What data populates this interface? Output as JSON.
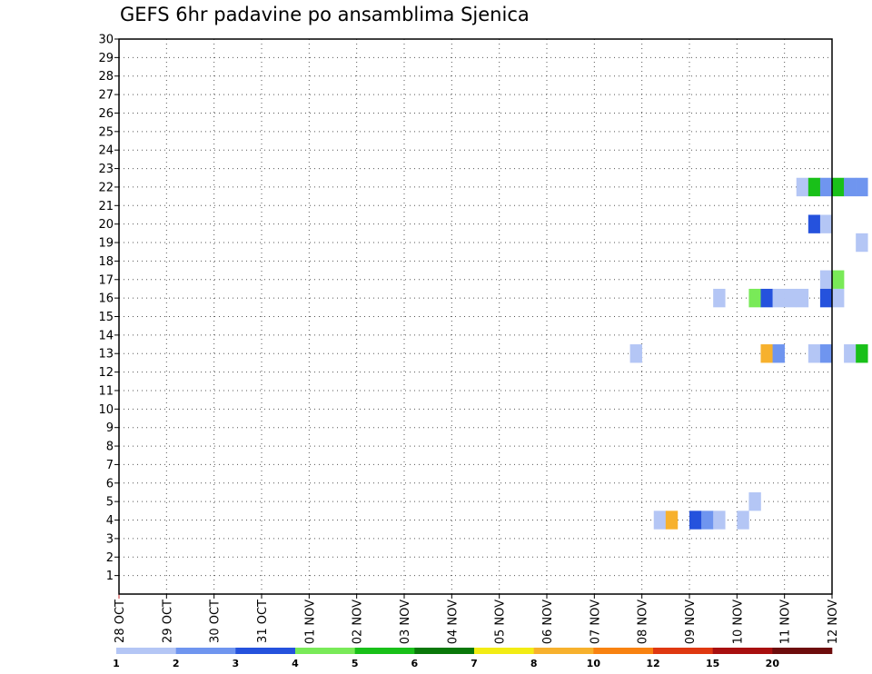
{
  "chart_data": {
    "type": "heatmap",
    "title": "GEFS 6hr padavine po ansamblima Sjenica",
    "xlabel": "",
    "ylabel": "",
    "x_ticks": [
      "28 OCT",
      "29 OCT",
      "30 OCT",
      "31 OCT",
      "01 NOV",
      "02 NOV",
      "03 NOV",
      "04 NOV",
      "05 NOV",
      "06 NOV",
      "07 NOV",
      "08 NOV",
      "09 NOV",
      "10 NOV",
      "11 NOV",
      "12 NOV"
    ],
    "x_range_days": [
      0,
      15
    ],
    "steps_per_day": 4,
    "y_ticks": [
      1,
      2,
      3,
      4,
      5,
      6,
      7,
      8,
      9,
      10,
      11,
      12,
      13,
      14,
      15,
      16,
      17,
      18,
      19,
      20,
      21,
      22,
      23,
      24,
      25,
      26,
      27,
      28,
      29,
      30
    ],
    "y_range": [
      0,
      30
    ],
    "grid": true,
    "colorbar": {
      "labels": [
        "1",
        "2",
        "3",
        "4",
        "5",
        "6",
        "7",
        "8",
        "10",
        "12",
        "15",
        "20"
      ],
      "colors": [
        "#b4c6f5",
        "#6f95ef",
        "#2552dd",
        "#79ea58",
        "#19c019",
        "#0a780a",
        "#f2ec14",
        "#f7b12d",
        "#f88211",
        "#df3811",
        "#a80f0f",
        "#6d0c0c"
      ]
    },
    "cells": [
      {
        "step": 43,
        "member": 13,
        "bin": 0
      },
      {
        "step": 45,
        "member": 4,
        "bin": 0
      },
      {
        "step": 46,
        "member": 4,
        "bin": 7
      },
      {
        "step": 48,
        "member": 4,
        "bin": 2
      },
      {
        "step": 49,
        "member": 4,
        "bin": 1
      },
      {
        "step": 50,
        "member": 4,
        "bin": 0
      },
      {
        "step": 50,
        "member": 16,
        "bin": 0
      },
      {
        "step": 52,
        "member": 4,
        "bin": 0
      },
      {
        "step": 53,
        "member": 5,
        "bin": 0
      },
      {
        "step": 53,
        "member": 16,
        "bin": 3
      },
      {
        "step": 54,
        "member": 16,
        "bin": 2
      },
      {
        "step": 54,
        "member": 13,
        "bin": 7
      },
      {
        "step": 55,
        "member": 13,
        "bin": 1
      },
      {
        "step": 55,
        "member": 16,
        "bin": 0
      },
      {
        "step": 56,
        "member": 16,
        "bin": 0
      },
      {
        "step": 57,
        "member": 16,
        "bin": 0
      },
      {
        "step": 57,
        "member": 22,
        "bin": 0
      },
      {
        "step": 58,
        "member": 22,
        "bin": 4
      },
      {
        "step": 58,
        "member": 20,
        "bin": 2
      },
      {
        "step": 58,
        "member": 13,
        "bin": 0
      },
      {
        "step": 59,
        "member": 22,
        "bin": 1
      },
      {
        "step": 59,
        "member": 20,
        "bin": 0
      },
      {
        "step": 59,
        "member": 17,
        "bin": 0
      },
      {
        "step": 59,
        "member": 16,
        "bin": 2
      },
      {
        "step": 59,
        "member": 13,
        "bin": 1
      },
      {
        "step": 60,
        "member": 22,
        "bin": 4
      },
      {
        "step": 60,
        "member": 17,
        "bin": 3
      },
      {
        "step": 60,
        "member": 16,
        "bin": 0
      },
      {
        "step": 61,
        "member": 22,
        "bin": 1
      },
      {
        "step": 61,
        "member": 13,
        "bin": 0
      },
      {
        "step": 62,
        "member": 22,
        "bin": 1
      },
      {
        "step": 62,
        "member": 19,
        "bin": 0
      },
      {
        "step": 62,
        "member": 13,
        "bin": 4
      }
    ]
  }
}
